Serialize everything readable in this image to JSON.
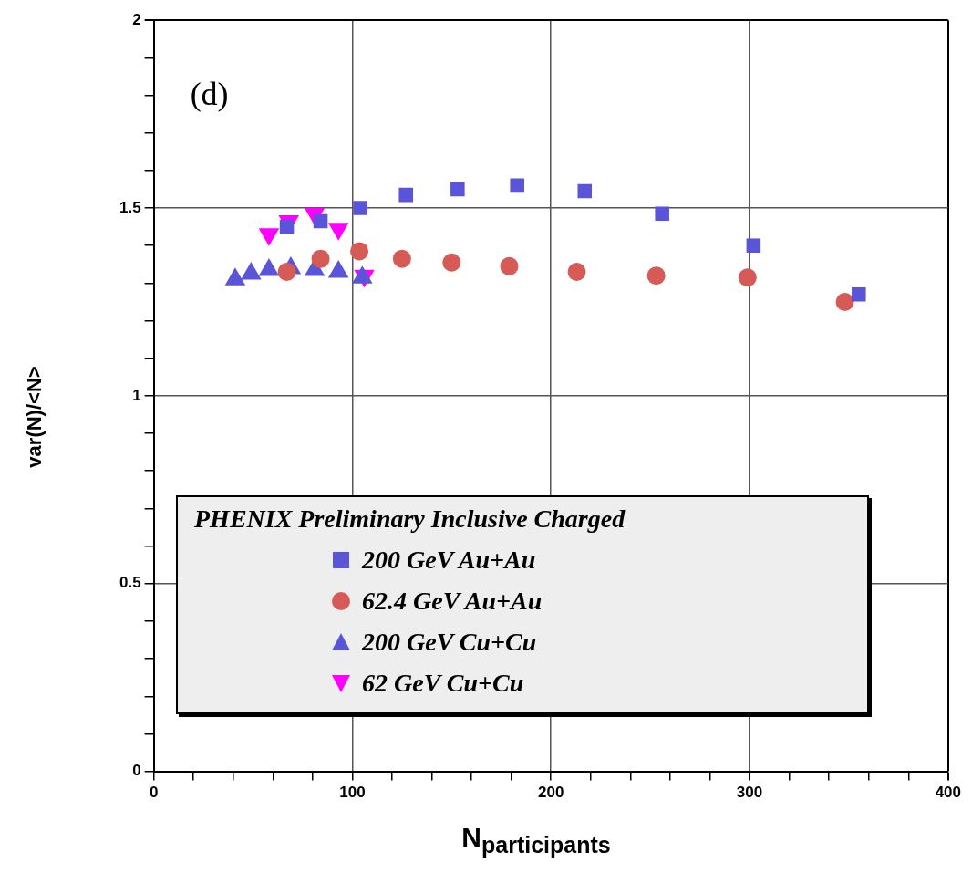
{
  "chart_data": {
    "type": "scatter",
    "xlabel": "N$_{participants}$",
    "ylabel": "var(N)/<N>",
    "legend_title": "PHENIX Preliminary Inclusive Charged",
    "legend": "bottom",
    "grid": true,
    "annotations": [
      "(d)"
    ],
    "xlim": [
      0,
      400
    ],
    "xticks": [
      0,
      {
        "value": 20,
        "label": null
      },
      {
        "value": 40,
        "label": null
      },
      {
        "value": 60,
        "label": null
      },
      {
        "value": 80,
        "label": null
      },
      100,
      {
        "value": 120,
        "label": null
      },
      {
        "value": 140,
        "label": null
      },
      {
        "value": 160,
        "label": null
      },
      {
        "value": 180,
        "label": null
      },
      200,
      {
        "value": 220,
        "label": null
      },
      {
        "value": 240,
        "label": null
      },
      {
        "value": 260,
        "label": null
      },
      {
        "value": 280,
        "label": null
      },
      300,
      {
        "value": 320,
        "label": null
      },
      {
        "value": 340,
        "label": null
      },
      {
        "value": 360,
        "label": null
      },
      {
        "value": 380,
        "label": null
      },
      400
    ],
    "ylim": [
      0,
      2
    ],
    "yticks": [
      0,
      {
        "value": 0.1,
        "label": null
      },
      {
        "value": 0.2,
        "label": null
      },
      {
        "value": 0.3,
        "label": null
      },
      {
        "value": 0.4,
        "label": null
      },
      0.5,
      {
        "value": 0.6,
        "label": null
      },
      {
        "value": 0.7,
        "label": null
      },
      {
        "value": 0.8,
        "label": null
      },
      {
        "value": 0.9,
        "label": null
      },
      1,
      {
        "value": 1.1,
        "label": null
      },
      {
        "value": 1.2,
        "label": null
      },
      {
        "value": 1.3,
        "label": null
      },
      {
        "value": 1.4,
        "label": null
      },
      1.5,
      {
        "value": 1.6,
        "label": null
      },
      {
        "value": 1.7,
        "label": null
      },
      {
        "value": 1.8,
        "label": null
      },
      {
        "value": 1.9,
        "label": null
      },
      2
    ],
    "series": [
      {
        "name": "200 GeV Au+Au",
        "color": "#5a55d8",
        "marker": "square",
        "x": [
          67,
          84,
          104,
          127,
          153,
          183,
          217,
          256,
          302,
          355
        ],
        "values": [
          1.45,
          1.465,
          1.5,
          1.535,
          1.55,
          1.56,
          1.545,
          1.485,
          1.4,
          1.27
        ]
      },
      {
        "name": "62.4 GeV Au+Au",
        "color": "#d65a55",
        "marker": "circle",
        "x": [
          67,
          84,
          103.5,
          125,
          150,
          179,
          213,
          253,
          299,
          348
        ],
        "values": [
          1.33,
          1.365,
          1.385,
          1.365,
          1.355,
          1.345,
          1.33,
          1.32,
          1.315,
          1.25
        ]
      },
      {
        "name": "200 GeV Cu+Cu",
        "color": "#5a55d8",
        "marker": "triangle",
        "x": [
          41,
          49,
          58,
          69,
          81,
          93,
          105
        ],
        "values": [
          1.31,
          1.325,
          1.335,
          1.34,
          1.335,
          1.33,
          1.315
        ]
      },
      {
        "name": "62 GeV Cu+Cu",
        "color": "#ff00ff",
        "marker": "triangle-down",
        "x": [
          58,
          68,
          81,
          93,
          106
        ],
        "values": [
          1.43,
          1.465,
          1.485,
          1.445,
          1.32
        ]
      }
    ]
  }
}
